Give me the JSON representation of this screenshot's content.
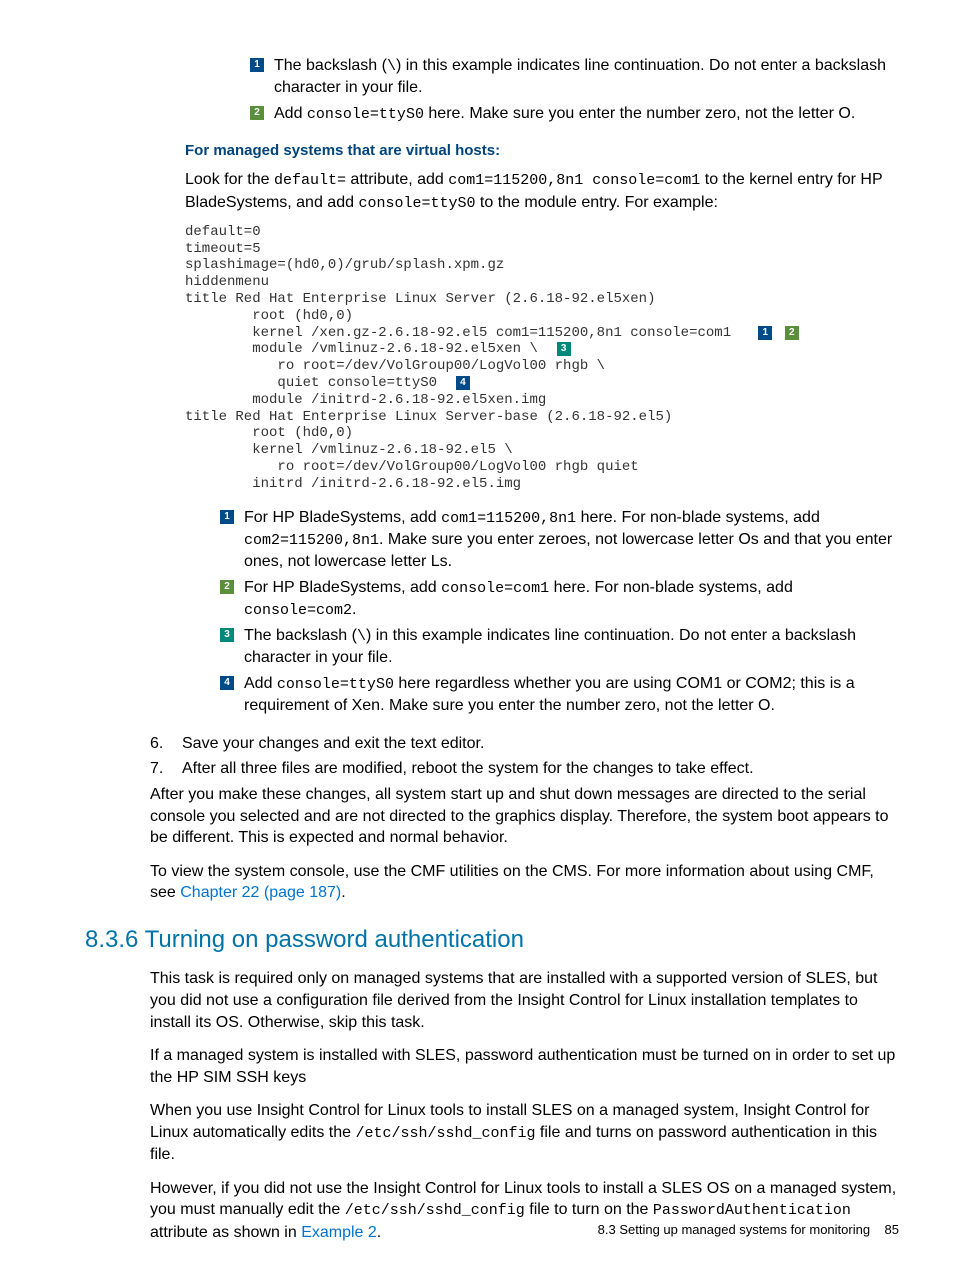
{
  "top_callouts": [
    {
      "num": "1",
      "cls": "c1",
      "text_parts": [
        "The backslash (",
        {
          "mono": "\\"
        },
        ") in this example indicates line continuation. Do not enter a backslash character in your file."
      ]
    },
    {
      "num": "2",
      "cls": "c2",
      "text_parts": [
        "Add ",
        {
          "mono": "console=ttyS0"
        },
        " here. Make sure you enter the number zero, not the letter O."
      ]
    }
  ],
  "subhead": "For managed systems that are virtual hosts:",
  "intro_para_parts": [
    "Look for the ",
    {
      "mono": "default="
    },
    " attribute, add ",
    {
      "mono": "com1=115200,8n1 console=com1"
    },
    " to the kernel entry for HP BladeSystems, and add ",
    {
      "mono": "console=ttyS0"
    },
    " to the module entry. For example:"
  ],
  "code_lines": [
    {
      "t": "default=0"
    },
    {
      "t": "timeout=5"
    },
    {
      "t": "splashimage=(hd0,0)/grub/splash.xpm.gz"
    },
    {
      "t": "hiddenmenu"
    },
    {
      "t": "title Red Hat Enterprise Linux Server (2.6.18-92.el5xen)"
    },
    {
      "t": "        root (hd0,0)"
    },
    {
      "t": "        kernel /xen.gz-2.6.18-92.el5 com1=115200,8n1 console=com1  ",
      "callouts": [
        "1",
        "2"
      ]
    },
    {
      "t": "        module /vmlinuz-2.6.18-92.el5xen \\ ",
      "callouts": [
        "3"
      ]
    },
    {
      "t": "           ro root=/dev/VolGroup00/LogVol00 rhgb \\"
    },
    {
      "t": "           quiet console=ttyS0 ",
      "callouts": [
        "4"
      ]
    },
    {
      "t": "        module /initrd-2.6.18-92.el5xen.img"
    },
    {
      "t": "title Red Hat Enterprise Linux Server-base (2.6.18-92.el5)"
    },
    {
      "t": "        root (hd0,0)"
    },
    {
      "t": "        kernel /vmlinuz-2.6.18-92.el5 \\"
    },
    {
      "t": "           ro root=/dev/VolGroup00/LogVol00 rhgb quiet"
    },
    {
      "t": "        initrd /initrd-2.6.18-92.el5.img"
    }
  ],
  "code_callouts": [
    {
      "num": "1",
      "cls": "c1",
      "text_parts": [
        "For HP BladeSystems, add ",
        {
          "mono": "com1=115200,8n1"
        },
        " here. For non-blade systems, add ",
        {
          "mono": "com2=115200,8n1"
        },
        ". Make sure you enter zeroes, not lowercase letter Os and that you enter ones, not lowercase letter Ls."
      ]
    },
    {
      "num": "2",
      "cls": "c2",
      "text_parts": [
        "For HP BladeSystems, add ",
        {
          "mono": "console=com1"
        },
        " here. For non-blade systems, add ",
        {
          "mono": "console=com2"
        },
        "."
      ]
    },
    {
      "num": "3",
      "cls": "c3",
      "text_parts": [
        "The backslash (",
        {
          "mono": "\\"
        },
        ") in this example indicates line continuation. Do not enter a backslash character in your file."
      ]
    },
    {
      "num": "4",
      "cls": "c4",
      "text_parts": [
        "Add ",
        {
          "mono": "console=ttyS0"
        },
        " here regardless whether you are using COM1 or COM2; this is a requirement of Xen. Make sure you enter the number zero, not the letter O."
      ]
    }
  ],
  "numbered_steps": [
    {
      "n": "6.",
      "t": "Save your changes and exit the text editor."
    },
    {
      "n": "7.",
      "t": "After all three files are modified, reboot the system for the changes to take effect."
    }
  ],
  "after_para": "After you make these changes, all system start up and shut down messages are directed to the serial console you selected and are not directed to the graphics display. Therefore, the system boot appears to be different. This is expected and normal behavior.",
  "view_para_pre": "To view the system console, use the CMF utilities on the CMS. For more information about using CMF, see ",
  "view_para_link": "Chapter 22 (page 187)",
  "view_para_post": ".",
  "section_title": "8.3.6 Turning on password authentication",
  "sec_p1": "This task is required only on managed systems that are installed with a supported version of SLES, but you did not use a configuration file derived from the Insight Control for Linux installation templates to install its OS. Otherwise, skip this task.",
  "sec_p2": "If a managed system is installed with SLES, password authentication must be turned on in order to set up the HP SIM SSH keys",
  "sec_p3_parts": [
    "When you use Insight Control for Linux tools to install SLES on a managed system, Insight Control for Linux automatically edits the ",
    {
      "mono": "/etc/ssh/sshd_config"
    },
    " file and turns on password authentication in this file."
  ],
  "sec_p4_parts": [
    "However, if you did not use the Insight Control for Linux tools to install a SLES OS on a managed system, you must manually edit the ",
    {
      "mono": "/etc/ssh/sshd_config"
    },
    " file to turn on the ",
    {
      "mono": "PasswordAuthentication"
    },
    " attribute as shown in ",
    {
      "link": "Example 2"
    },
    "."
  ],
  "footer_text": "8.3 Setting up managed systems for monitoring",
  "footer_page": "85"
}
